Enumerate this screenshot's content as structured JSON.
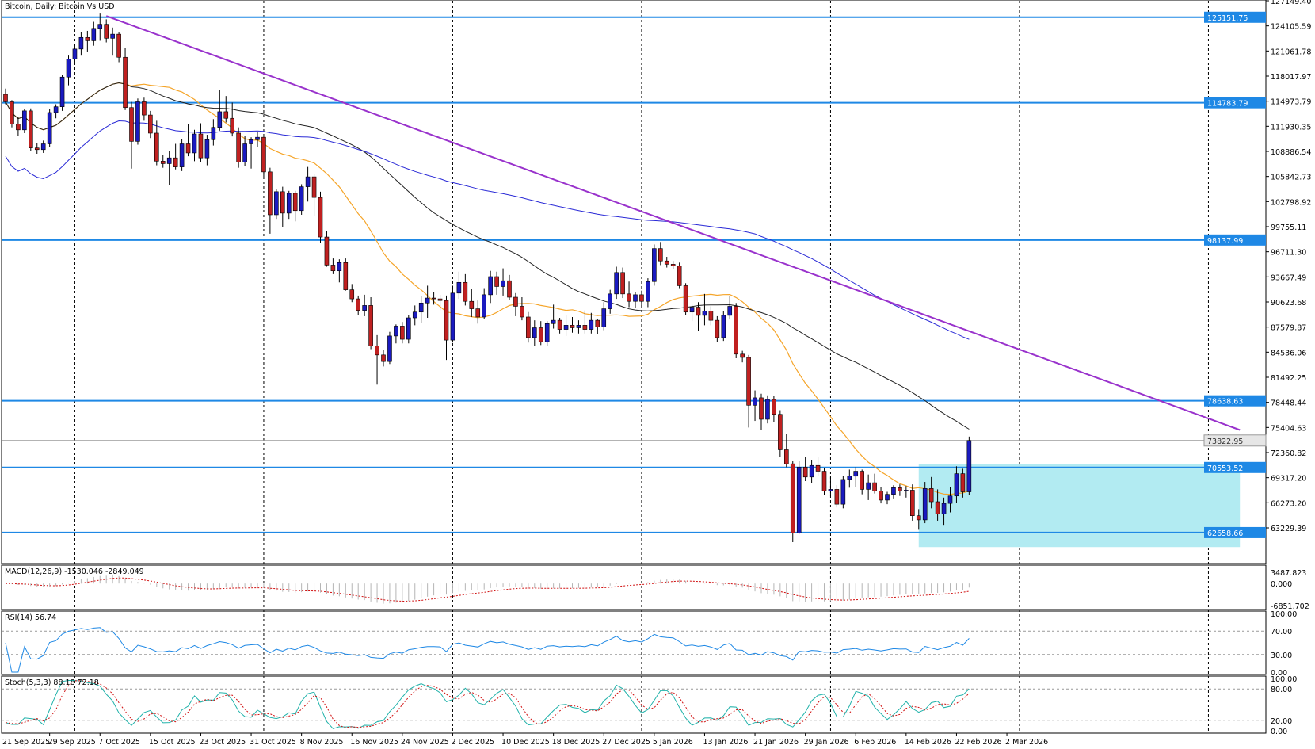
{
  "chart_data": {
    "type": "candlestick",
    "title": "Bitcoin, Daily:  Bitcoin Vs USD",
    "price_axis": {
      "min": 59000,
      "max": 127149.4,
      "tick_labels": [
        "127149.40",
        "124105.59",
        "121061.78",
        "118017.97",
        "114973.79",
        "111930.35",
        "108886.54",
        "105842.73",
        "102798.92",
        "99755.11",
        "96711.30",
        "93667.49",
        "90623.68",
        "87579.87",
        "84536.06",
        "81492.25",
        "78448.44",
        "75404.63",
        "72360.82",
        "69317.20",
        "66273.20",
        "63229.39"
      ]
    },
    "date_labels": [
      "21 Sep 2025",
      "29 Sep 2025",
      "7 Oct 2025",
      "15 Oct 2025",
      "23 Oct 2025",
      "31 Oct 2025",
      "8 Nov 2025",
      "16 Nov 2025",
      "24 Nov 2025",
      "2 Dec 2025",
      "10 Dec 2025",
      "18 Dec 2025",
      "27 Dec 2025",
      "5 Jan 2026",
      "13 Jan 2026",
      "21 Jan 2026",
      "29 Jan 2026",
      "6 Feb 2026",
      "14 Feb 2026",
      "22 Feb 2026",
      "2 Mar 2026"
    ],
    "levels": [
      {
        "label": "125151.75",
        "value": 125151.75,
        "color": "#1e88e5"
      },
      {
        "label": "114783.79",
        "value": 114783.79,
        "color": "#1e88e5"
      },
      {
        "label": "98137.99",
        "value": 98137.99,
        "color": "#1e88e5"
      },
      {
        "label": "78638.63",
        "value": 78638.63,
        "color": "#1e88e5"
      },
      {
        "label": "70553.52",
        "value": 70553.52,
        "color": "#1e88e5"
      },
      {
        "label": "62658.66",
        "value": 62658.66,
        "color": "#1e88e5"
      }
    ],
    "current_price": {
      "label": "73822.95",
      "value": 73822.95
    },
    "trendline": {
      "from": {
        "bar": 16,
        "price": 125300
      },
      "to": {
        "bar": 196,
        "price": 75100
      },
      "color": "#9932cc"
    },
    "range_box": {
      "from_bar": 145,
      "to_bar": 196,
      "top": 70950,
      "bottom": 60900,
      "color": "#b2ebf2"
    },
    "colors": {
      "bull": "#1a1ac0",
      "bear": "#c02020",
      "ma20": "#f5a52a",
      "ma50": "#222222",
      "ma200": "#2a2ad6"
    },
    "ohlc": [
      [
        115800,
        116500,
        114600,
        114900
      ],
      [
        114900,
        115100,
        111800,
        112200
      ],
      [
        112200,
        113100,
        110800,
        111500
      ],
      [
        111500,
        114000,
        111100,
        113800
      ],
      [
        113800,
        114100,
        108900,
        109300
      ],
      [
        109300,
        109900,
        108600,
        109100
      ],
      [
        109100,
        110200,
        108700,
        109800
      ],
      [
        109800,
        114000,
        109400,
        113600
      ],
      [
        113600,
        114600,
        112900,
        114300
      ],
      [
        114300,
        118200,
        113800,
        117900
      ],
      [
        117900,
        120500,
        116900,
        120100
      ],
      [
        120100,
        121900,
        119500,
        121300
      ],
      [
        121300,
        123400,
        120500,
        122700
      ],
      [
        122700,
        123500,
        121000,
        122300
      ],
      [
        122300,
        124600,
        121700,
        123800
      ],
      [
        123800,
        125600,
        122300,
        124300
      ],
      [
        124300,
        124900,
        122100,
        122600
      ],
      [
        122600,
        123900,
        120500,
        123100
      ],
      [
        123100,
        123300,
        119700,
        120300
      ],
      [
        120300,
        121400,
        113900,
        114200
      ],
      [
        114200,
        114900,
        106800,
        110100
      ],
      [
        110100,
        115300,
        109700,
        114900
      ],
      [
        114900,
        115400,
        112600,
        113300
      ],
      [
        113300,
        113800,
        110500,
        111100
      ],
      [
        111100,
        112600,
        107200,
        107700
      ],
      [
        107700,
        108500,
        106900,
        107400
      ],
      [
        107400,
        108900,
        104800,
        108100
      ],
      [
        108100,
        109800,
        106700,
        107000
      ],
      [
        107000,
        110400,
        106500,
        109800
      ],
      [
        109800,
        112200,
        108300,
        108700
      ],
      [
        108700,
        111500,
        107700,
        111000
      ],
      [
        111000,
        112300,
        107600,
        108100
      ],
      [
        108100,
        110900,
        107200,
        110300
      ],
      [
        110300,
        112800,
        109600,
        111800
      ],
      [
        111800,
        116300,
        111400,
        113700
      ],
      [
        113700,
        115600,
        112400,
        112900
      ],
      [
        112900,
        114800,
        110700,
        111100
      ],
      [
        111100,
        111800,
        106900,
        107600
      ],
      [
        107600,
        110800,
        107100,
        109800
      ],
      [
        109800,
        110600,
        106800,
        110300
      ],
      [
        110300,
        111200,
        109400,
        110600
      ],
      [
        110600,
        110800,
        105800,
        106400
      ],
      [
        106400,
        106900,
        98900,
        101200
      ],
      [
        101200,
        104300,
        100700,
        104000
      ],
      [
        104000,
        104600,
        99700,
        101400
      ],
      [
        101400,
        104100,
        100700,
        103800
      ],
      [
        103800,
        104100,
        100400,
        101700
      ],
      [
        101700,
        104900,
        101200,
        104600
      ],
      [
        104600,
        107000,
        102800,
        105800
      ],
      [
        105800,
        106100,
        101100,
        103300
      ],
      [
        103300,
        104000,
        97800,
        98500
      ],
      [
        98500,
        99200,
        94900,
        95100
      ],
      [
        95100,
        95900,
        94000,
        94400
      ],
      [
        94400,
        95800,
        93000,
        95400
      ],
      [
        95400,
        95900,
        92000,
        92100
      ],
      [
        92100,
        92800,
        90600,
        91000
      ],
      [
        91000,
        91400,
        89000,
        89600
      ],
      [
        89600,
        91500,
        88900,
        90200
      ],
      [
        90200,
        91200,
        84900,
        85300
      ],
      [
        85300,
        86600,
        80600,
        84200
      ],
      [
        84200,
        84800,
        82800,
        83400
      ],
      [
        83400,
        87000,
        83100,
        86500
      ],
      [
        86500,
        87900,
        85600,
        87700
      ],
      [
        87700,
        88200,
        85600,
        86100
      ],
      [
        86100,
        89000,
        85600,
        88700
      ],
      [
        88700,
        90200,
        87800,
        89400
      ],
      [
        89400,
        91300,
        88100,
        90500
      ],
      [
        90500,
        92600,
        88700,
        91100
      ],
      [
        91100,
        91800,
        90300,
        91000
      ],
      [
        91000,
        91500,
        89600,
        90800
      ],
      [
        90800,
        91400,
        83600,
        86000
      ],
      [
        86000,
        92600,
        85700,
        91700
      ],
      [
        91700,
        94300,
        91000,
        93000
      ],
      [
        93000,
        94000,
        90200,
        90700
      ],
      [
        90700,
        92200,
        88800,
        89800
      ],
      [
        89800,
        90800,
        88000,
        88800
      ],
      [
        88800,
        92300,
        88600,
        91500
      ],
      [
        91500,
        94400,
        90500,
        93700
      ],
      [
        93700,
        94300,
        91500,
        92500
      ],
      [
        92500,
        94700,
        91400,
        93200
      ],
      [
        93200,
        93900,
        90900,
        91200
      ],
      [
        91200,
        91700,
        88900,
        90100
      ],
      [
        90100,
        91200,
        88400,
        88800
      ],
      [
        88800,
        89400,
        85700,
        86300
      ],
      [
        86300,
        88400,
        85300,
        87500
      ],
      [
        87500,
        88300,
        85400,
        85800
      ],
      [
        85800,
        88300,
        85300,
        88000
      ],
      [
        88000,
        90300,
        87400,
        88400
      ],
      [
        88400,
        88700,
        86800,
        87300
      ],
      [
        87300,
        89000,
        86500,
        87800
      ],
      [
        87800,
        88800,
        86900,
        87500
      ],
      [
        87500,
        88400,
        86800,
        87800
      ],
      [
        87800,
        89600,
        86800,
        87300
      ],
      [
        87300,
        89300,
        86800,
        88400
      ],
      [
        88400,
        88600,
        86700,
        87600
      ],
      [
        87600,
        90600,
        87200,
        89800
      ],
      [
        89800,
        92100,
        89200,
        91600
      ],
      [
        91600,
        94900,
        91000,
        94200
      ],
      [
        94200,
        94800,
        91100,
        91600
      ],
      [
        91600,
        93100,
        90000,
        90700
      ],
      [
        90700,
        91800,
        89900,
        91500
      ],
      [
        91500,
        92000,
        90000,
        90700
      ],
      [
        90700,
        93500,
        90000,
        93100
      ],
      [
        93100,
        97600,
        92600,
        97100
      ],
      [
        97100,
        97900,
        95100,
        95600
      ],
      [
        95600,
        96100,
        94800,
        95200
      ],
      [
        95200,
        95600,
        94600,
        95000
      ],
      [
        95000,
        95400,
        92300,
        92600
      ],
      [
        92600,
        92900,
        89000,
        89400
      ],
      [
        89400,
        90300,
        88300,
        90000
      ],
      [
        90000,
        90600,
        87100,
        89000
      ],
      [
        89000,
        91600,
        87800,
        89500
      ],
      [
        89500,
        90100,
        87800,
        88400
      ],
      [
        88400,
        88900,
        85800,
        86300
      ],
      [
        86300,
        89500,
        85900,
        89000
      ],
      [
        89000,
        91300,
        88500,
        90100
      ],
      [
        90100,
        90500,
        83800,
        84300
      ],
      [
        84300,
        84700,
        83300,
        83900
      ],
      [
        83900,
        84200,
        75400,
        78100
      ],
      [
        78100,
        79900,
        76200,
        79000
      ],
      [
        79000,
        79500,
        75100,
        76400
      ],
      [
        76400,
        79300,
        75900,
        78800
      ],
      [
        78800,
        79200,
        76100,
        77000
      ],
      [
        77000,
        77500,
        71800,
        72700
      ],
      [
        72700,
        74600,
        70600,
        71000
      ],
      [
        71000,
        71300,
        61500,
        62600
      ],
      [
        62600,
        71300,
        62500,
        70600
      ],
      [
        70600,
        71800,
        68900,
        69400
      ],
      [
        69400,
        71400,
        68700,
        70800
      ],
      [
        70800,
        71800,
        69500,
        70100
      ],
      [
        70100,
        70500,
        67200,
        67700
      ],
      [
        67700,
        69400,
        67100,
        67900
      ],
      [
        67900,
        68400,
        65700,
        66100
      ],
      [
        66100,
        69500,
        65600,
        69100
      ],
      [
        69100,
        70300,
        68100,
        69500
      ],
      [
        69500,
        70600,
        68200,
        70100
      ],
      [
        70100,
        70300,
        67300,
        67900
      ],
      [
        67900,
        69700,
        66600,
        68700
      ],
      [
        68700,
        69800,
        67400,
        67700
      ],
      [
        67700,
        68200,
        66200,
        66600
      ],
      [
        66600,
        67600,
        66100,
        67300
      ],
      [
        67300,
        68400,
        66800,
        68100
      ],
      [
        68100,
        68500,
        67100,
        67700
      ],
      [
        67700,
        68300,
        66900,
        67800
      ],
      [
        67800,
        68500,
        64100,
        64700
      ],
      [
        64700,
        65500,
        63000,
        64200
      ],
      [
        64200,
        68800,
        63800,
        68000
      ],
      [
        68000,
        69400,
        65600,
        66400
      ],
      [
        66400,
        67900,
        64100,
        64900
      ],
      [
        64900,
        66900,
        63500,
        66200
      ],
      [
        66200,
        68200,
        65100,
        67100
      ],
      [
        67100,
        70700,
        66300,
        69800
      ],
      [
        69800,
        70400,
        66900,
        67600
      ],
      [
        67600,
        74300,
        67200,
        73822.95
      ]
    ],
    "macd": {
      "label": "MACD(12,26,9) -1530.046 -2849.049",
      "ticks": [
        "3487.823",
        "0.000",
        "-6851.702"
      ],
      "max": 3487.823,
      "min": -6851.702
    },
    "rsi": {
      "label": "RSI(14) 56.74",
      "ticks": [
        "100.00",
        "70.00",
        "30.00",
        "0.00"
      ],
      "levels": [
        70,
        30
      ]
    },
    "stoch": {
      "label": "Stoch(5,3,3) 88.18 72.18",
      "ticks": [
        "100.00",
        "80.00",
        "20.00",
        "0.00"
      ],
      "levels": [
        80,
        20
      ]
    }
  }
}
